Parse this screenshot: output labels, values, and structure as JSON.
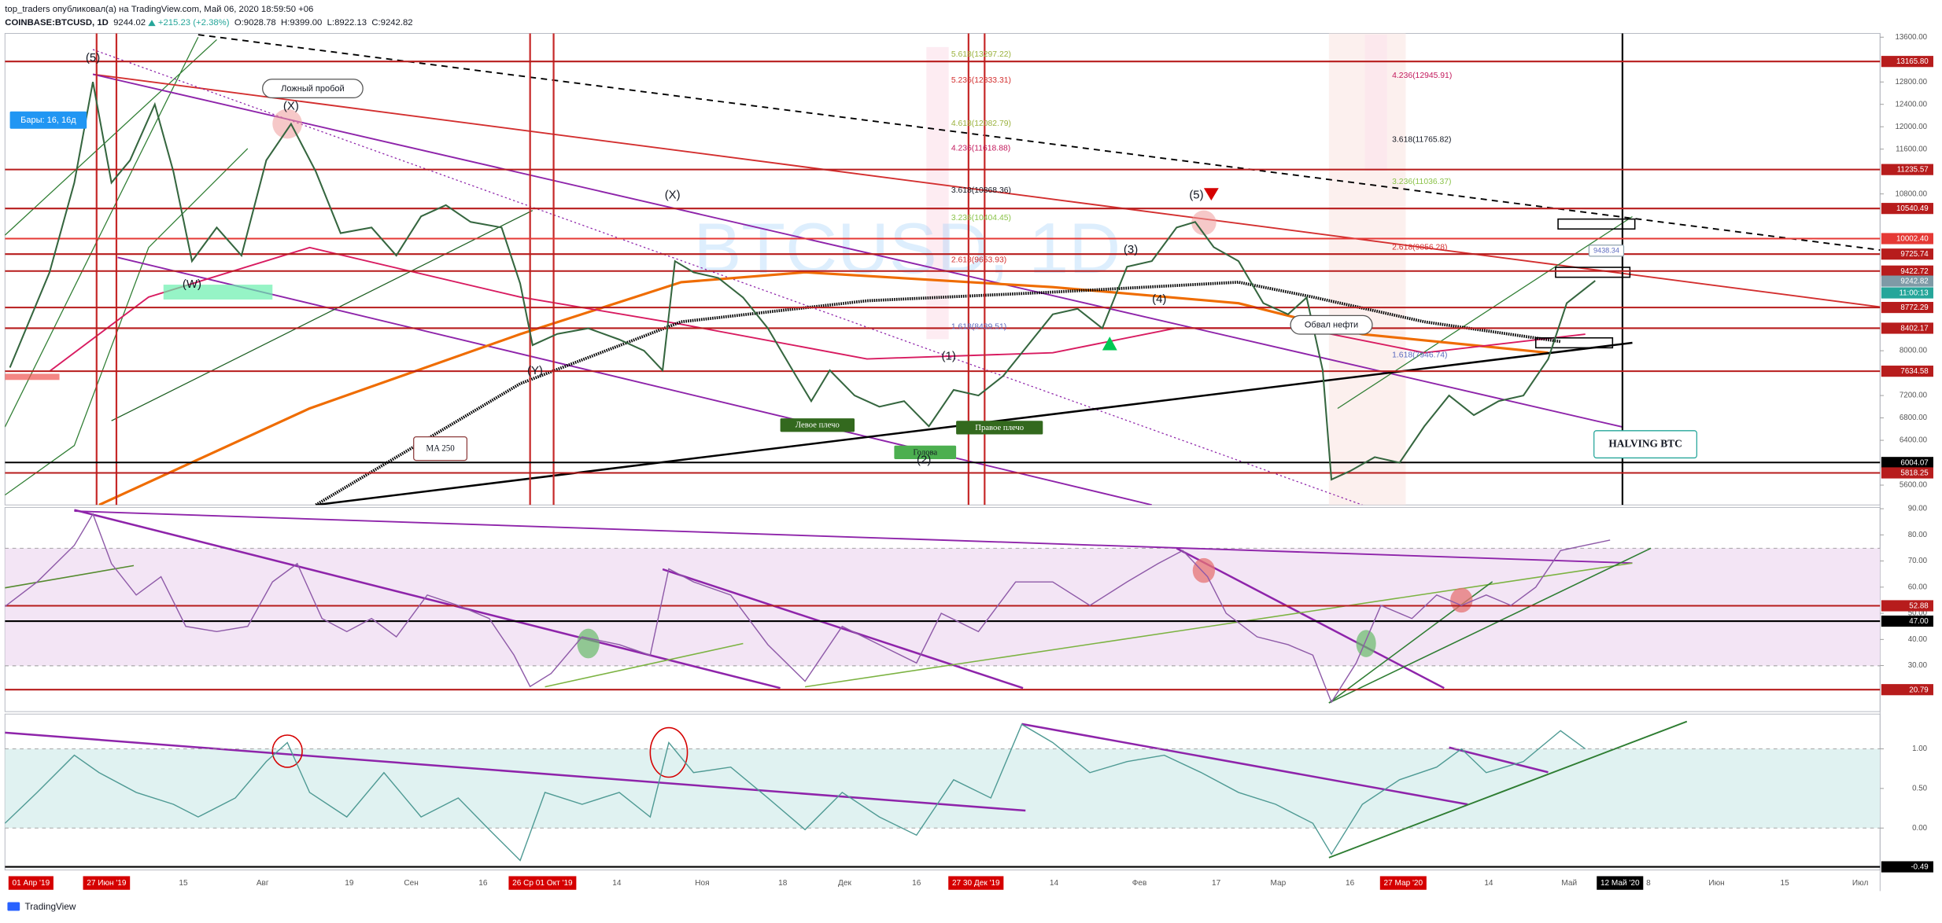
{
  "header": {
    "publisher": "top_traders опубликовал(а) на TradingView.com, Май 06, 2020 18:59:50 +06",
    "symbol": "COINBASE:BTCUSD, 1D",
    "last": "9244.02",
    "change": "+215.23 (+2.38%)",
    "open": "O:9028.78",
    "high": "H:9399.00",
    "low": "L:8922.13",
    "close": "C:9242.82"
  },
  "main": {
    "type": "line",
    "color": "#35663f",
    "watermark": "BTCUSD, 1D",
    "values": [
      7700,
      9400,
      11000,
      12800,
      11000,
      11400,
      12400,
      11200,
      9600,
      10200,
      9700,
      11400,
      12050,
      11200,
      10100,
      10200,
      9700,
      10400,
      10600,
      10300,
      10200,
      9200,
      8100,
      8300,
      8400,
      8200,
      8000,
      7650,
      9600,
      9400,
      9300,
      8950,
      8400,
      7650,
      7100,
      7650,
      7200,
      7000,
      7100,
      6650,
      7300,
      7200,
      7550,
      8100,
      8650,
      8750,
      8400,
      9500,
      9600,
      10200,
      10300,
      9850,
      9600,
      8850,
      8650,
      8950,
      7650,
      5700,
      5850,
      6100,
      6000,
      6650,
      7200,
      6850,
      7100,
      7200,
      7850,
      8850,
      9250
    ],
    "ylim": [
      5246,
      13666
    ],
    "yticks": [
      {
        "value": 5600,
        "label": "5600.00"
      },
      {
        "value": 6400,
        "label": "6400.00"
      },
      {
        "value": 6800,
        "label": "6800.00"
      },
      {
        "value": 7200,
        "label": "7200.00"
      },
      {
        "value": 8000,
        "label": "8000.00"
      },
      {
        "value": 10800,
        "label": "10800.00"
      },
      {
        "value": 11600,
        "label": "11600.00"
      },
      {
        "value": 12000,
        "label": "12000.00"
      },
      {
        "value": 12400,
        "label": "12400.00"
      },
      {
        "value": 12800,
        "label": "12800.00"
      },
      {
        "value": 13600,
        "label": "13600.00"
      }
    ],
    "levels": [
      {
        "value": 13165.8,
        "label": "13165.80",
        "color": "#b71c1c"
      },
      {
        "value": 11235.57,
        "label": "11235.57",
        "color": "#b71c1c"
      },
      {
        "value": 10540.49,
        "label": "10540.49",
        "color": "#b71c1c"
      },
      {
        "value": 10002.4,
        "label": "10002.40",
        "color": "#e53935"
      },
      {
        "value": 9725.74,
        "label": "9725.74",
        "color": "#b71c1c"
      },
      {
        "value": 9422.72,
        "label": "9422.72",
        "color": "#b71c1c"
      },
      {
        "value": 9242.82,
        "label": "9242.82",
        "color": "#7e9aa6",
        "line": false
      },
      {
        "value": 8772.29,
        "label": "8772.29",
        "color": "#b71c1c"
      },
      {
        "value": 8402.17,
        "label": "8402.17",
        "color": "#b71c1c"
      },
      {
        "value": 7634.58,
        "label": "7634.58",
        "color": "#b71c1c"
      },
      {
        "value": 6004.07,
        "label": "6004.07",
        "color": "#000000"
      },
      {
        "value": 5818.25,
        "label": "5818.25",
        "color": "#b71c1c"
      }
    ],
    "countdown": "11:00:13",
    "annotations": [
      "Бары: 16, 16д",
      "Ложный пробой",
      "(5)",
      "(X)",
      "(W)",
      "(Y)",
      "(X)",
      "MA 250",
      "Левое плечо",
      "Голова",
      "Правое плечо",
      "(1)",
      "(2)",
      "(3)",
      "(4)",
      "(5)",
      "Обвал нефти",
      "HALVING BTC",
      "9438.34"
    ],
    "fib": [
      {
        "text": "5.618(13297.22)",
        "color": "#9bb23e"
      },
      {
        "text": "5.236(12833.31)",
        "color": "#d32f2f"
      },
      {
        "text": "4.618(12082.79)",
        "color": "#9bb23e"
      },
      {
        "text": "4.236(11618.88)",
        "color": "#c2185b"
      },
      {
        "text": "3.618(10868.36)",
        "color": "#131722"
      },
      {
        "text": "3.236(10404.45)",
        "color": "#8bc34a"
      },
      {
        "text": "2.618(9653.93)",
        "color": "#d32f2f"
      },
      {
        "text": "1.618(8439.51)",
        "color": "#5c6bc0"
      },
      {
        "text": "4.236(12945.91)",
        "color": "#c2185b"
      },
      {
        "text": "3.618(11765.82)",
        "color": "#131722"
      },
      {
        "text": "3.236(11036.37)",
        "color": "#8bc34a"
      },
      {
        "text": "2.618(9856.28)",
        "color": "#d32f2f"
      },
      {
        "text": "1.618(7946.74)",
        "color": "#5c6bc0"
      }
    ]
  },
  "rsi": {
    "type": "line",
    "color": "#8e5aa8",
    "values": [
      52.6,
      62,
      76,
      88,
      69,
      57,
      64,
      45,
      43,
      45,
      62,
      69,
      48,
      43,
      48,
      41,
      57,
      53,
      48,
      34,
      22,
      27,
      41,
      38,
      34,
      67,
      62,
      57,
      38,
      24,
      45,
      38,
      31,
      50,
      43,
      62,
      62,
      53,
      62,
      69,
      74,
      64,
      50,
      41,
      38,
      34,
      16,
      31,
      53,
      48,
      57,
      53,
      57,
      53,
      60,
      74,
      76,
      78
    ],
    "ylim": [
      12.4,
      90.5
    ],
    "yticks": [
      {
        "value": 90,
        "label": "90.00"
      },
      {
        "value": 80,
        "label": "80.00"
      },
      {
        "value": 70,
        "label": "70.00"
      },
      {
        "value": 60,
        "label": "60.00"
      },
      {
        "value": 50,
        "label": "50.00"
      },
      {
        "value": 40,
        "label": "40.00"
      },
      {
        "value": 30,
        "label": "30.00"
      }
    ],
    "levels": [
      {
        "value": 52.88,
        "label": "52.88",
        "color": "#b71c1c"
      },
      {
        "value": 47.0,
        "label": "47.00",
        "color": "#000000"
      },
      {
        "value": 20.79,
        "label": "20.79",
        "color": "#b71c1c"
      }
    ]
  },
  "osc": {
    "type": "line",
    "color": "#4f9a94",
    "values": [
      0.06,
      0.45,
      0.92,
      0.7,
      0.45,
      0.3,
      0.14,
      0.38,
      0.84,
      1.08,
      0.45,
      0.14,
      0.7,
      0.14,
      0.38,
      -0.02,
      -0.41,
      0.45,
      0.3,
      0.45,
      0.14,
      1.08,
      0.7,
      0.77,
      0.38,
      -0.02,
      0.45,
      0.14,
      -0.09,
      0.61,
      0.38,
      1.31,
      1.08,
      0.7,
      0.84,
      0.92,
      0.7,
      0.45,
      0.3,
      0.06,
      -0.33,
      0.3,
      0.61,
      0.77,
      1.0,
      0.7,
      0.84,
      1.23,
      1.0
    ],
    "ylim": [
      -0.53,
      1.44
    ],
    "yticks": [
      {
        "value": 1,
        "label": "1.00"
      },
      {
        "value": 0.5,
        "label": "0.50"
      },
      {
        "value": 0,
        "label": "0.00"
      }
    ],
    "levels": [
      {
        "value": -0.49,
        "label": "-0.49",
        "color": "#000000"
      }
    ]
  },
  "time_axis": [
    {
      "text": "01 Апр '19",
      "box": "#d50000"
    },
    {
      "text": "27 Июн '19",
      "box": "#d50000"
    },
    {
      "text": "15"
    },
    {
      "text": "Авг"
    },
    {
      "text": "19"
    },
    {
      "text": "Сен"
    },
    {
      "text": "16"
    },
    {
      "text": "26 Ср 01 Окт '19",
      "box": "#d50000"
    },
    {
      "text": "14"
    },
    {
      "text": "Ноя"
    },
    {
      "text": "18"
    },
    {
      "text": "Дек"
    },
    {
      "text": "16"
    },
    {
      "text": "27 30 Дек '19",
      "box": "#d50000"
    },
    {
      "text": "14"
    },
    {
      "text": "Фев"
    },
    {
      "text": "17"
    },
    {
      "text": "Мар"
    },
    {
      "text": "16"
    },
    {
      "text": "27 Мар '20",
      "box": "#d50000"
    },
    {
      "text": "14"
    },
    {
      "text": "Май"
    },
    {
      "text": "12 Май '20",
      "box": "#000000"
    },
    {
      "text": "8"
    },
    {
      "text": "Июн"
    },
    {
      "text": "15"
    },
    {
      "text": "Июл"
    }
  ],
  "footer": "TradingView"
}
